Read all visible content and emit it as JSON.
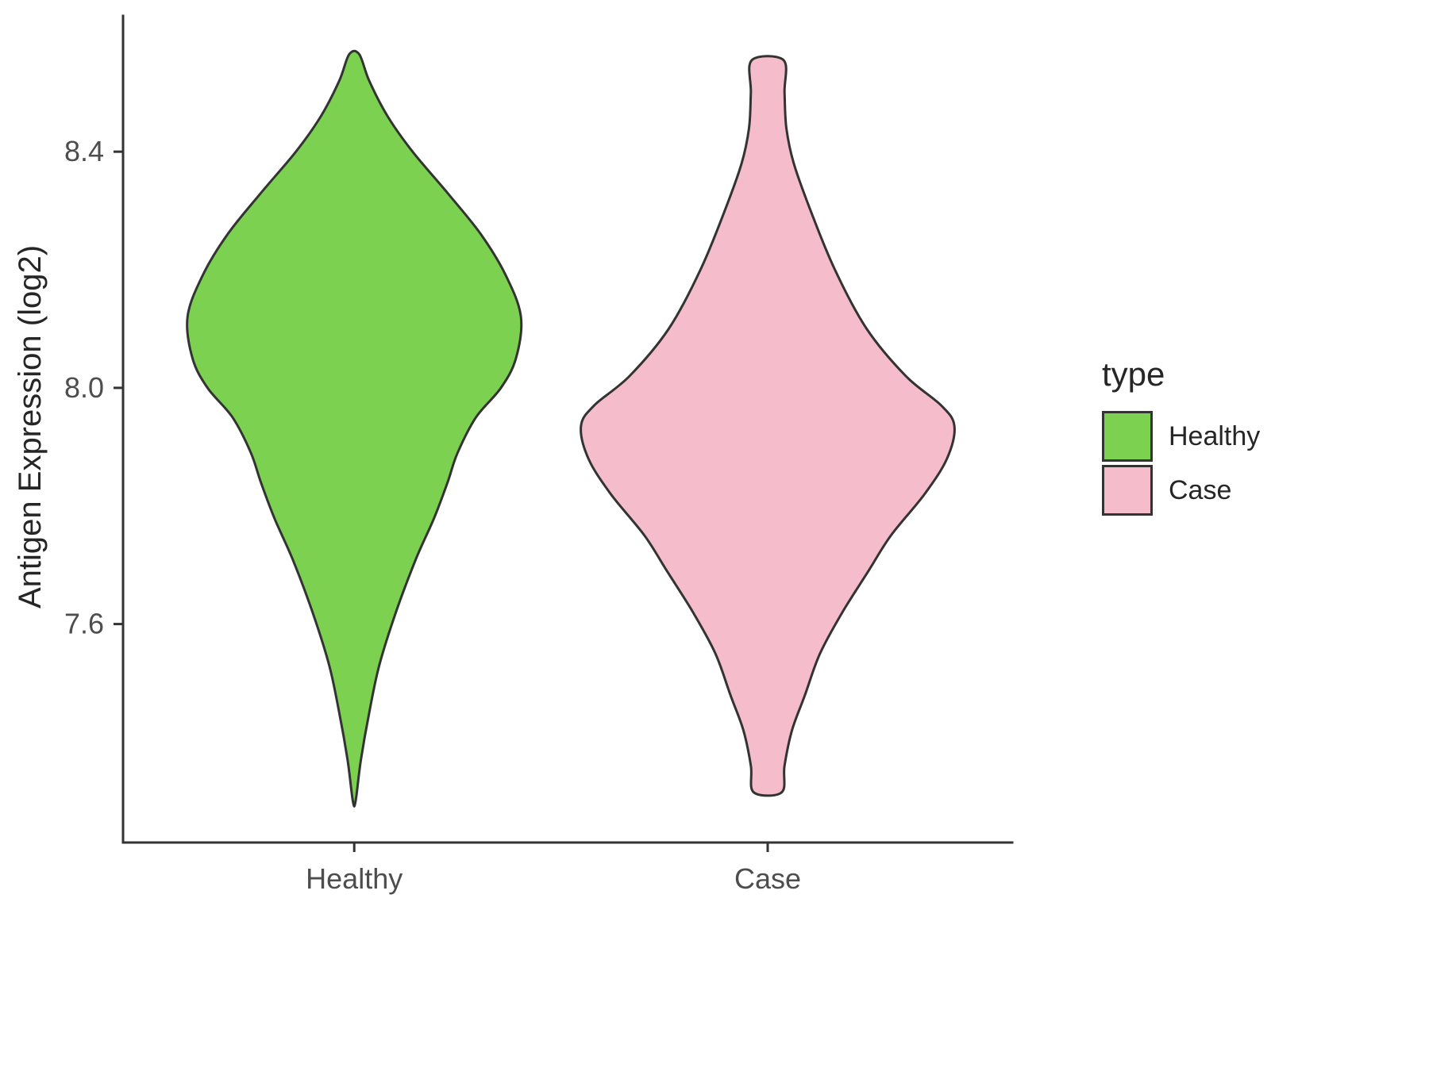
{
  "chart_data": {
    "type": "violin",
    "title": "",
    "xlabel": "",
    "ylabel": "Antigen Expression (log2)",
    "categories": [
      "Healthy",
      "Case"
    ],
    "ytick_labels": [
      "8.4",
      "8.0",
      "7.6"
    ],
    "ytick_values": [
      8.4,
      8.0,
      7.6
    ],
    "ylim": [
      7.23,
      8.63
    ],
    "grid": false,
    "axis_color": "#333333",
    "tick_label_color": "#4d4d4d",
    "legend_position": "right",
    "legend": {
      "title": "type",
      "entries": [
        {
          "label": "Healthy",
          "color": "#7CD250"
        },
        {
          "label": "Case",
          "color": "#F5BCCB"
        }
      ]
    },
    "series": [
      {
        "name": "Healthy",
        "fill": "#7CD250",
        "stroke": "#333333",
        "center_frac": 0.26,
        "width_scale": 0.375,
        "top_cap": "flat",
        "bottom_cap": "point",
        "profile": [
          [
            8.565,
            0.03
          ],
          [
            8.52,
            0.09
          ],
          [
            8.46,
            0.2
          ],
          [
            8.4,
            0.35
          ],
          [
            8.33,
            0.56
          ],
          [
            8.26,
            0.76
          ],
          [
            8.19,
            0.91
          ],
          [
            8.12,
            1.0
          ],
          [
            8.05,
            0.97
          ],
          [
            8.0,
            0.88
          ],
          [
            7.95,
            0.73
          ],
          [
            7.89,
            0.62
          ],
          [
            7.84,
            0.56
          ],
          [
            7.78,
            0.48
          ],
          [
            7.71,
            0.37
          ],
          [
            7.62,
            0.25
          ],
          [
            7.53,
            0.15
          ],
          [
            7.45,
            0.09
          ],
          [
            7.37,
            0.04
          ],
          [
            7.3,
            0.008
          ]
        ]
      },
      {
        "name": "Case",
        "fill": "#F5BCCB",
        "stroke": "#333333",
        "center_frac": 0.725,
        "width_scale": 0.42,
        "top_cap": "flat",
        "bottom_cap": "flat",
        "profile": [
          [
            8.555,
            0.085
          ],
          [
            8.5,
            0.09
          ],
          [
            8.44,
            0.1
          ],
          [
            8.38,
            0.14
          ],
          [
            8.3,
            0.23
          ],
          [
            8.2,
            0.36
          ],
          [
            8.1,
            0.53
          ],
          [
            8.02,
            0.74
          ],
          [
            7.97,
            0.93
          ],
          [
            7.935,
            1.0
          ],
          [
            7.88,
            0.96
          ],
          [
            7.82,
            0.84
          ],
          [
            7.75,
            0.66
          ],
          [
            7.69,
            0.54
          ],
          [
            7.62,
            0.4
          ],
          [
            7.55,
            0.28
          ],
          [
            7.48,
            0.2
          ],
          [
            7.42,
            0.13
          ],
          [
            7.36,
            0.09
          ],
          [
            7.315,
            0.075
          ]
        ]
      }
    ]
  }
}
